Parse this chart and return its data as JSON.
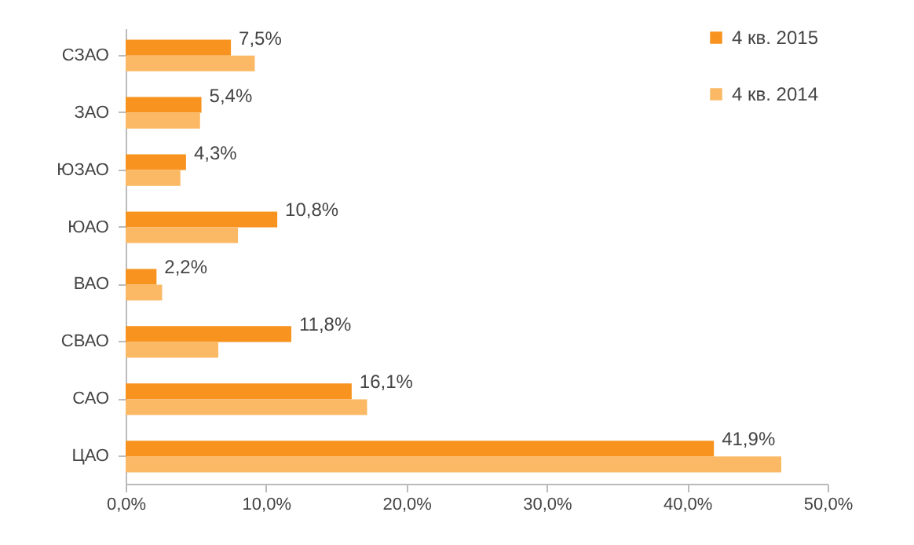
{
  "chart_data": {
    "type": "bar",
    "orientation": "horizontal",
    "categories": [
      "СЗАО",
      "ЗАО",
      "ЮЗАО",
      "ЮАО",
      "ВАО",
      "СВАО",
      "САО",
      "ЦАО"
    ],
    "series": [
      {
        "name": "4 кв. 2015",
        "color": "#f7931e",
        "values": [
          7.5,
          5.4,
          4.3,
          10.8,
          2.2,
          11.8,
          16.1,
          41.9
        ],
        "value_labels": [
          "7,5%",
          "5,4%",
          "4,3%",
          "10,8%",
          "2,2%",
          "11,8%",
          "16,1%",
          "41,9%"
        ]
      },
      {
        "name": "4 кв. 2014",
        "color": "#fbb965",
        "values": [
          9.2,
          5.3,
          3.9,
          8.0,
          2.6,
          6.6,
          17.2,
          46.7
        ]
      }
    ],
    "xlim": [
      0,
      50
    ],
    "xticks": [
      {
        "value": 0,
        "label": "0,0%"
      },
      {
        "value": 10,
        "label": "10,0%"
      },
      {
        "value": 20,
        "label": "20,0%"
      },
      {
        "value": 30,
        "label": "30,0%"
      },
      {
        "value": 40,
        "label": "40,0%"
      },
      {
        "value": 50,
        "label": "50,0%"
      }
    ],
    "legend": "top right",
    "grid": false
  }
}
